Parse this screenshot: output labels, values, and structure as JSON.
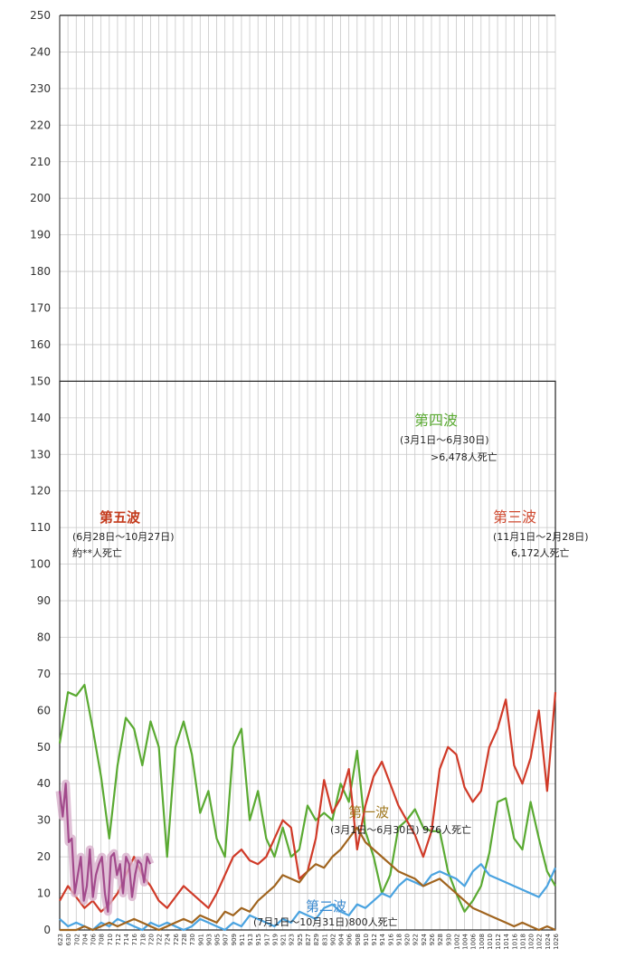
{
  "chart_data": {
    "type": "line",
    "ylim": [
      0,
      250
    ],
    "y_ticks": [
      0,
      10,
      20,
      30,
      40,
      50,
      60,
      70,
      80,
      90,
      100,
      110,
      120,
      130,
      140,
      150,
      160,
      170,
      180,
      190,
      200,
      210,
      220,
      230,
      240,
      250
    ],
    "x_tick_labels": [
      "623",
      "630",
      "702",
      "704",
      "706",
      "708",
      "710",
      "712",
      "714",
      "716",
      "718",
      "720",
      "722",
      "724",
      "726",
      "728",
      "730",
      "901",
      "903",
      "905",
      "907",
      "909",
      "911",
      "913",
      "915",
      "917",
      "919",
      "921",
      "923",
      "925",
      "827",
      "829",
      "831",
      "902",
      "904",
      "906",
      "908",
      "910",
      "912",
      "914",
      "916",
      "918",
      "920",
      "922",
      "924",
      "926",
      "928",
      "930",
      "1002",
      "1004",
      "1006",
      "1008",
      "1010",
      "1012",
      "1014",
      "1016",
      "1018",
      "1020",
      "1022",
      "1024",
      "1026"
    ],
    "grid": true,
    "series": [
      {
        "name": "",
        "color": "#5aaa32",
        "values": [
          51,
          65,
          64,
          67,
          55,
          42,
          25,
          45,
          58,
          55,
          45,
          57,
          50,
          20,
          50,
          57,
          48,
          32,
          38,
          25,
          20,
          50,
          55,
          30,
          38,
          25,
          20,
          28,
          20,
          22,
          34,
          30,
          32,
          30,
          40,
          35,
          49,
          27,
          20,
          10,
          15,
          28,
          30,
          33,
          28,
          27,
          27,
          16,
          10,
          5,
          8,
          12,
          21,
          35,
          36,
          25,
          22,
          35,
          25,
          16,
          12
        ]
      },
      {
        "name": "",
        "color": "#d03a28",
        "values": [
          8,
          12,
          9,
          6,
          8,
          5,
          7,
          10,
          15,
          20,
          15,
          12,
          8,
          6,
          9,
          12,
          10,
          8,
          6,
          10,
          15,
          20,
          22,
          19,
          18,
          20,
          25,
          30,
          28,
          14,
          16,
          25,
          41,
          32,
          36,
          44,
          22,
          34,
          42,
          46,
          40,
          34,
          30,
          26,
          20,
          27,
          44,
          50,
          48,
          39,
          35,
          38,
          50,
          55,
          63,
          45,
          40,
          47,
          60,
          38,
          65
        ]
      },
      {
        "name": "",
        "color": "#4aa3e0",
        "values": [
          3,
          1,
          2,
          1,
          0,
          2,
          1,
          3,
          2,
          1,
          0,
          2,
          1,
          2,
          1,
          0,
          1,
          3,
          2,
          1,
          0,
          2,
          1,
          4,
          3,
          2,
          1,
          3,
          2,
          5,
          4,
          3,
          6,
          7,
          5,
          4,
          7,
          6,
          8,
          10,
          9,
          12,
          14,
          13,
          12,
          15,
          16,
          15,
          14,
          12,
          16,
          18,
          15,
          14,
          13,
          12,
          11,
          10,
          9,
          12,
          17
        ]
      },
      {
        "name": "",
        "color": "#a0641e",
        "values": [
          0,
          0,
          0,
          1,
          0,
          1,
          2,
          1,
          2,
          3,
          2,
          1,
          0,
          1,
          2,
          3,
          2,
          4,
          3,
          2,
          5,
          4,
          6,
          5,
          8,
          10,
          12,
          15,
          14,
          13,
          16,
          18,
          17,
          20,
          22,
          25,
          28,
          24,
          22,
          20,
          18,
          16,
          15,
          14,
          12,
          13,
          14,
          12,
          10,
          8,
          6,
          5,
          4,
          3,
          2,
          1,
          2,
          1,
          0,
          1,
          0
        ]
      },
      {
        "name": "",
        "color": "#a24a8c",
        "values": [
          38,
          31,
          40,
          24,
          25,
          10,
          15,
          20,
          8,
          12,
          22,
          9,
          15,
          18,
          20,
          10,
          5,
          20,
          21,
          15,
          18,
          10,
          20,
          18,
          9,
          15,
          19,
          18,
          13,
          20,
          18
        ]
      }
    ],
    "annotations": [
      {
        "title": "第五波",
        "period": "(6月28日～10月27日)",
        "note": "約**人死亡",
        "color": "#c43a1c"
      },
      {
        "title": "第四波",
        "period": "(3月1日～6月30日)",
        "note": ">6,478人死亡",
        "color": "#5aaa32"
      },
      {
        "title": "第三波",
        "period": "(11月1日～2月28日)",
        "note": "6,172人死亡",
        "color": "#d04a30"
      },
      {
        "title": "第一波",
        "period": "(3月1日～6月30日)  976人死亡",
        "note": "",
        "color": "#a0781e"
      },
      {
        "title": "第二波",
        "period": "(7月1日～10月31日)800人死亡",
        "note": "",
        "color": "#3a8ad0"
      }
    ]
  }
}
